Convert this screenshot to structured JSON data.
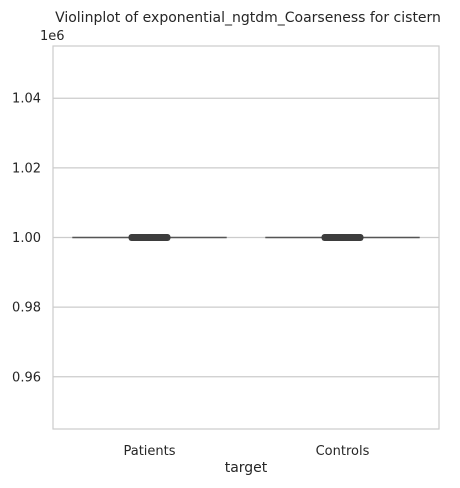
{
  "chart_data": {
    "type": "violin",
    "title": "Violinplot of exponential_ngtdm_Coarseness for cistern",
    "xlabel": "target",
    "ylabel": "",
    "y_offset_label": "1e6",
    "categories": [
      "Patients",
      "Controls"
    ],
    "yticks": [
      0.96,
      0.98,
      1.0,
      1.02,
      1.04
    ],
    "ytick_labels": [
      "0.96",
      "0.98",
      "1.00",
      "1.02",
      "1.04"
    ],
    "ylim": [
      0.945,
      1.055
    ],
    "grid": true,
    "series": [
      {
        "category": "Patients",
        "values": [
          1.0
        ],
        "median": 1.0,
        "q1": 1.0,
        "q3": 1.0
      },
      {
        "category": "Controls",
        "values": [
          1.0
        ],
        "median": 1.0,
        "q1": 1.0,
        "q3": 1.0
      }
    ],
    "colors": {
      "grid": "#cccccc",
      "frame": "#cccccc",
      "violin_line": "#555555",
      "box": "#3d3d3d",
      "text": "#262626"
    }
  }
}
